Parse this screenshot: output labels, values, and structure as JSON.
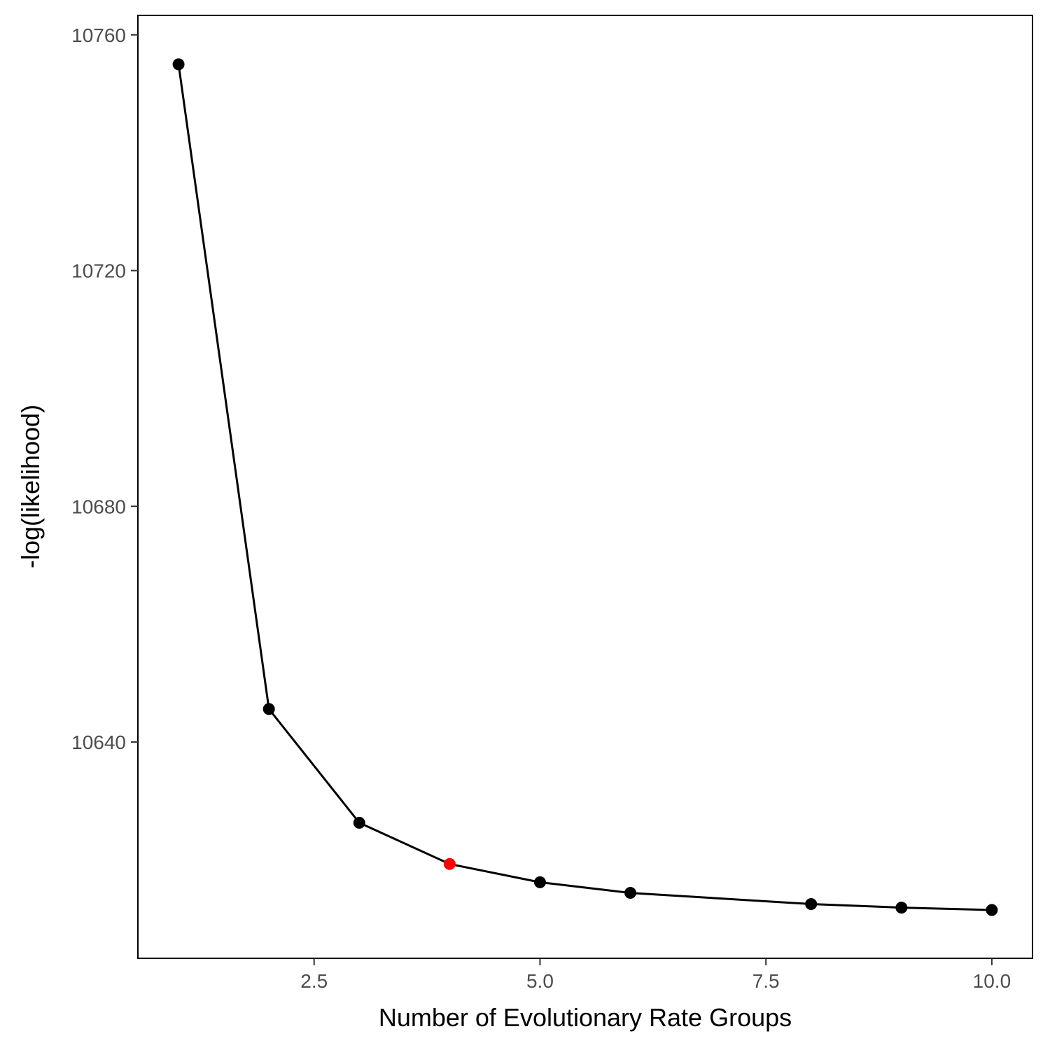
{
  "chart_data": {
    "type": "line",
    "xlabel": "Number of Evolutionary Rate Groups",
    "ylabel": "-log(likelihood)",
    "xlim": [
      0.55,
      10.45
    ],
    "ylim": [
      10603.3,
      10763.3
    ],
    "x_ticks": [
      2.5,
      5.0,
      7.5,
      10.0
    ],
    "x_tick_labels": [
      "2.5",
      "5.0",
      "7.5",
      "10.0"
    ],
    "y_ticks": [
      10640,
      10680,
      10720,
      10760
    ],
    "y_tick_labels": [
      "10640",
      "10680",
      "10720",
      "10760"
    ],
    "grid": false,
    "series": [
      {
        "color": "#000000",
        "points": [
          {
            "x": 1,
            "y": 10755
          },
          {
            "x": 2,
            "y": 10645.6
          },
          {
            "x": 3,
            "y": 10626.3
          },
          {
            "x": 4,
            "y": 10619.3
          },
          {
            "x": 5,
            "y": 10616.2
          },
          {
            "x": 6,
            "y": 10614.4
          },
          {
            "x": 8,
            "y": 10612.5
          },
          {
            "x": 9,
            "y": 10611.9
          },
          {
            "x": 10,
            "y": 10611.5
          }
        ]
      }
    ],
    "highlight": {
      "x": 4,
      "y": 10619.3,
      "color": "#ff0000"
    }
  }
}
